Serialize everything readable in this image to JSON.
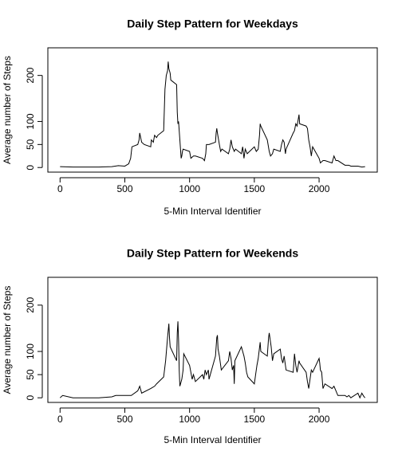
{
  "chart_data": [
    {
      "type": "line",
      "title": "Daily Step Pattern for Weekdays",
      "xlabel": "5-Min Interval Identifier",
      "ylabel": "Average number of Steps",
      "xlim": [
        -94.2,
        2449.2
      ],
      "xticks": [
        0,
        500,
        1000,
        1500,
        2000
      ],
      "ylim": [
        -10,
        260
      ],
      "yticks": [
        0,
        50,
        100,
        200
      ],
      "color": "#000000",
      "x": [
        0,
        100,
        200,
        300,
        400,
        450,
        500,
        530,
        545,
        555,
        600,
        610,
        615,
        630,
        650,
        700,
        705,
        720,
        730,
        745,
        755,
        800,
        810,
        820,
        830,
        835,
        840,
        850,
        855,
        900,
        905,
        910,
        915,
        920,
        925,
        930,
        935,
        940,
        945,
        950,
        1000,
        1010,
        1030,
        1045,
        1100,
        1115,
        1125,
        1130,
        1150,
        1200,
        1205,
        1210,
        1215,
        1230,
        1240,
        1250,
        1300,
        1310,
        1320,
        1330,
        1345,
        1355,
        1400,
        1410,
        1420,
        1430,
        1445,
        1500,
        1515,
        1530,
        1540,
        1545,
        1550,
        1600,
        1615,
        1625,
        1640,
        1650,
        1700,
        1710,
        1720,
        1730,
        1740,
        1745,
        1800,
        1810,
        1820,
        1830,
        1845,
        1850,
        1900,
        1910,
        1920,
        1930,
        1940,
        1950,
        2000,
        2010,
        2030,
        2045,
        2100,
        2115,
        2130,
        2145,
        2200,
        2230,
        2245,
        2300,
        2330,
        2355
      ],
      "values": [
        2,
        1,
        1,
        1,
        2,
        4,
        3,
        8,
        20,
        45,
        50,
        60,
        75,
        55,
        50,
        45,
        60,
        55,
        70,
        65,
        70,
        80,
        170,
        200,
        210,
        230,
        215,
        205,
        190,
        180,
        120,
        95,
        100,
        80,
        60,
        40,
        20,
        25,
        35,
        40,
        35,
        20,
        25,
        25,
        20,
        15,
        30,
        50,
        50,
        55,
        75,
        85,
        75,
        50,
        35,
        40,
        30,
        40,
        60,
        45,
        35,
        40,
        30,
        45,
        20,
        40,
        30,
        45,
        35,
        40,
        70,
        95,
        90,
        60,
        35,
        25,
        30,
        40,
        35,
        50,
        60,
        55,
        30,
        40,
        75,
        80,
        95,
        90,
        115,
        95,
        90,
        85,
        60,
        45,
        25,
        45,
        20,
        10,
        15,
        15,
        10,
        25,
        15,
        15,
        5,
        5,
        3,
        3,
        1,
        2
      ]
    },
    {
      "type": "line",
      "title": "Daily Step Pattern for Weekends",
      "xlabel": "5-Min Interval Identifier",
      "ylabel": "Average number of Steps",
      "xlim": [
        -94.2,
        2449.2
      ],
      "xticks": [
        0,
        500,
        1000,
        1500,
        2000
      ],
      "ylim": [
        -10,
        260
      ],
      "yticks": [
        0,
        50,
        100,
        200
      ],
      "color": "#000000",
      "x": [
        0,
        20,
        100,
        200,
        300,
        400,
        430,
        500,
        550,
        600,
        615,
        630,
        700,
        730,
        745,
        800,
        815,
        830,
        840,
        845,
        850,
        900,
        905,
        910,
        915,
        920,
        925,
        930,
        940,
        950,
        955,
        1000,
        1010,
        1020,
        1030,
        1045,
        1100,
        1110,
        1120,
        1130,
        1145,
        1150,
        1200,
        1210,
        1215,
        1220,
        1230,
        1240,
        1245,
        1300,
        1310,
        1320,
        1330,
        1340,
        1345,
        1350,
        1400,
        1410,
        1420,
        1430,
        1440,
        1450,
        1500,
        1510,
        1520,
        1530,
        1545,
        1550,
        1600,
        1610,
        1615,
        1625,
        1630,
        1640,
        1650,
        1700,
        1710,
        1720,
        1730,
        1745,
        1800,
        1810,
        1820,
        1830,
        1845,
        1850,
        1900,
        1910,
        1920,
        1930,
        1940,
        1950,
        2000,
        2005,
        2010,
        2020,
        2030,
        2045,
        2100,
        2115,
        2130,
        2145,
        2200,
        2215,
        2230,
        2245,
        2300,
        2315,
        2330,
        2345,
        2355
      ],
      "values": [
        0,
        5,
        0,
        0,
        0,
        2,
        5,
        5,
        5,
        15,
        25,
        10,
        20,
        25,
        30,
        45,
        80,
        130,
        160,
        130,
        110,
        80,
        140,
        165,
        125,
        60,
        25,
        30,
        40,
        60,
        95,
        70,
        55,
        40,
        50,
        35,
        50,
        40,
        60,
        50,
        60,
        40,
        90,
        130,
        135,
        105,
        90,
        70,
        60,
        80,
        100,
        85,
        60,
        70,
        30,
        80,
        110,
        100,
        90,
        75,
        55,
        45,
        30,
        50,
        70,
        85,
        120,
        100,
        90,
        130,
        140,
        120,
        110,
        80,
        95,
        105,
        85,
        75,
        90,
        60,
        55,
        95,
        70,
        55,
        80,
        75,
        55,
        35,
        20,
        40,
        60,
        55,
        85,
        75,
        60,
        55,
        20,
        30,
        20,
        25,
        15,
        5,
        5,
        2,
        5,
        0,
        10,
        0,
        10,
        3,
        0
      ]
    }
  ]
}
